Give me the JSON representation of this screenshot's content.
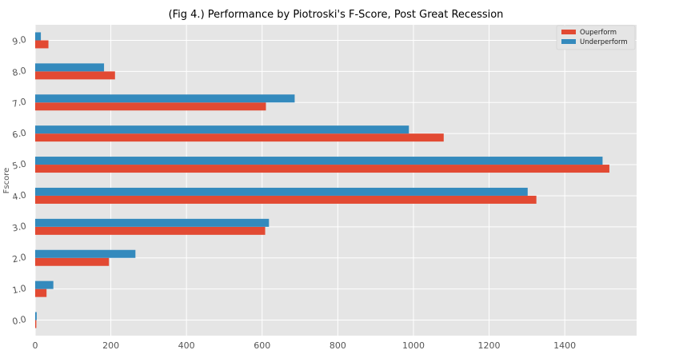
{
  "chart_data": {
    "type": "bar",
    "orientation": "horizontal",
    "title": "(Fig 4.) Performance by Piotroski's F-Score, Post Great Recession",
    "ylabel": "Fscore",
    "xlabel": "",
    "categories": [
      "0.0",
      "1.0",
      "2.0",
      "3.0",
      "4.0",
      "5.0",
      "6.0",
      "7.0",
      "8.0",
      "9.0"
    ],
    "series": [
      {
        "name": "Ouperform",
        "color": "#e24a33",
        "values": [
          3,
          30,
          195,
          608,
          1325,
          1518,
          1080,
          610,
          211,
          35
        ]
      },
      {
        "name": "Underperform",
        "color": "#348abd",
        "values": [
          4,
          48,
          265,
          618,
          1302,
          1500,
          988,
          686,
          182,
          15
        ]
      }
    ],
    "xlim": [
      0,
      1590
    ],
    "xticks": [
      0,
      200,
      400,
      600,
      800,
      1000,
      1200,
      1400
    ],
    "xtick_labels": [
      "0",
      "200",
      "400",
      "600",
      "800",
      "1000",
      "1200",
      "1400"
    ],
    "grid": true,
    "legend_position": "top-right",
    "background_color": "#e5e5e5",
    "grid_color": "#ffffff"
  }
}
